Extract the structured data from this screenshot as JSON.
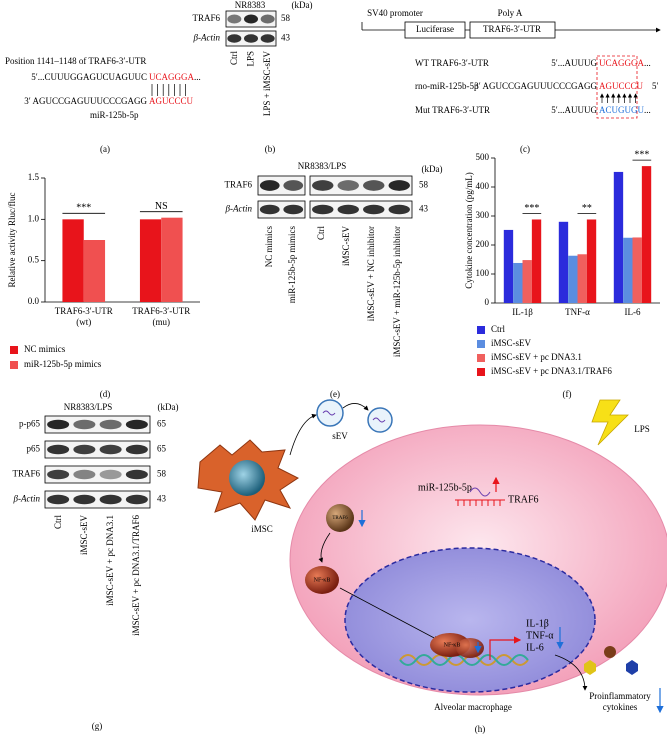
{
  "panels": {
    "a": {
      "label": "(a)",
      "position": "Position 1141–1148 of TRAF6-3′-UTR",
      "target": [
        "5′...CUUUGGAGUCUAGUUC",
        "UCAGGGA",
        "..."
      ],
      "mirna": [
        "3′ AGUCCGAGUUUCCCGAGG",
        "AGUCCCU"
      ],
      "mirna_name": "miR-125b-5p"
    },
    "b": {
      "label": "(b)",
      "cell": "NR8383",
      "unit": "(kDa)",
      "rows": [
        {
          "name": "TRAF6",
          "kda": 58
        },
        {
          "name": "β-Actin",
          "kda": 43
        }
      ],
      "lanes": [
        "Ctrl",
        "LPS",
        "LPS + iMSC-sEV"
      ]
    },
    "c": {
      "label": "(c)",
      "promoter": "SV40 promoter",
      "polya": "Poly A",
      "luciferase": "Luciferase",
      "utr_box": "TRAF6-3′-UTR",
      "wt_name": "WT TRAF6-3′-UTR",
      "wt": [
        "5′...AUUUG",
        "UCAGGGA",
        "..."
      ],
      "mir_name": "rno-miR-125b-5p",
      "mir": [
        "3′ AGUCCGAGUUUCCCGAGG",
        "AGUCCCU"
      ],
      "mir_end": "5′",
      "mut_name": "Mut TRAF6-3′-UTR",
      "mut": [
        "5′...AUUUG",
        "ACUGUGU",
        "..."
      ]
    },
    "d": {
      "label": "(d)"
    },
    "e": {
      "label": "(e)",
      "cell": "NR8383/LPS",
      "unit": "(kDa)",
      "rows": [
        {
          "name": "TRAF6",
          "kda": 58
        },
        {
          "name": "β-Actin",
          "kda": 43
        }
      ],
      "lanes": [
        "NC mimics",
        "miR-125b-5p mimics",
        "Ctrl",
        "iMSC-sEV",
        "iMSC-sEV + NC inhibitor",
        "iMSC-sEV + miR-125b-5p inhibitor"
      ]
    },
    "f": {
      "label": "(f)"
    },
    "g": {
      "label": "(g)",
      "cell": "NR8383/LPS",
      "unit": "(kDa)",
      "rows": [
        {
          "name": "p-p65",
          "kda": 65
        },
        {
          "name": "p65",
          "kda": 65
        },
        {
          "name": "TRAF6",
          "kda": 58
        },
        {
          "name": "β-Actin",
          "kda": 43
        }
      ],
      "lanes": [
        "Ctrl",
        "iMSC-sEV",
        "iMSC-sEV + pc DNA3.1",
        "iMSC-sEV + pc DNA3.1/TRAF6"
      ]
    },
    "h": {
      "label": "(h)",
      "sev": "sEV",
      "imsc": "iMSC",
      "mirna": "miR-125b-5p",
      "traf6": "TRAF6",
      "lps": "LPS",
      "traf6_complex": "TRAF6",
      "nfkb": "NF-κB",
      "nfkb_nucleus": "NF-κB",
      "cytokine_genes": [
        "IL-1β",
        "TNF-α",
        "IL-6"
      ],
      "cell": "Alveolar macrophage",
      "output": [
        "Proinflammatory",
        "cytokines"
      ]
    }
  },
  "chart_data": [
    {
      "type": "bar",
      "ylabel": "Relative activity Rluc/fluc",
      "categories": [
        [
          "TRAF6-3′-UTR",
          "(wt)"
        ],
        [
          "TRAF6-3′-UTR",
          "(mu)"
        ]
      ],
      "series": [
        {
          "name": "NC mimics",
          "color": "#e8141b",
          "values": [
            1.0,
            1.0
          ]
        },
        {
          "name": "miR-125b-5p mimics",
          "color": "#f05050",
          "values": [
            0.75,
            1.02
          ]
        }
      ],
      "ylim": [
        0,
        1.5
      ],
      "yticks": [
        {
          "value": 0,
          "label": "0.0"
        },
        0.5,
        {
          "value": 1,
          "label": "1.0"
        },
        1.5
      ],
      "annotations": [
        "***",
        "NS"
      ]
    },
    {
      "type": "bar",
      "ylabel": "Cytokine concentration (pg/mL)",
      "categories": [
        "IL-1β",
        "TNF-α",
        "IL-6"
      ],
      "series": [
        {
          "name": "Ctrl",
          "color": "#2b2bdc",
          "values": [
            252,
            280,
            452
          ]
        },
        {
          "name": "iMSC-sEV",
          "color": "#5b8de0",
          "values": [
            138,
            163,
            225
          ]
        },
        {
          "name": "iMSC-sEV + pc DNA3.1",
          "color": "#f0605e",
          "values": [
            148,
            168,
            226
          ]
        },
        {
          "name": "iMSC-sEV + pc DNA3.1/TRAF6",
          "color": "#e8141b",
          "values": [
            288,
            288,
            472
          ]
        }
      ],
      "ylim": [
        0,
        500
      ],
      "yticks": [
        0,
        100,
        200,
        300,
        400,
        500
      ],
      "annotations": [
        "***",
        "**",
        "***"
      ]
    }
  ]
}
